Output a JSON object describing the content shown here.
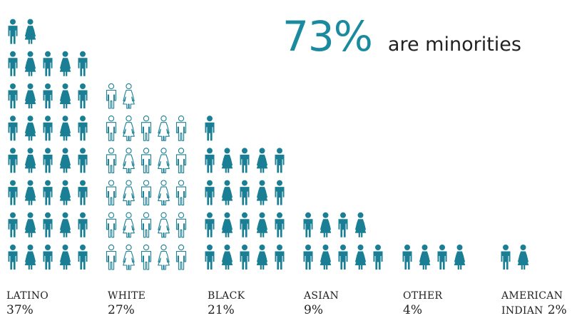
{
  "headline": {
    "value": "73%",
    "text": "are minorities"
  },
  "chart_data": {
    "type": "pictograph",
    "colors": {
      "filled": "#1a7f94",
      "outline": "#1a7f94"
    },
    "series": [
      {
        "label": "LATINO",
        "label_sub": "",
        "percent": "37%",
        "value": 37,
        "style": "filled"
      },
      {
        "label": "WHITE",
        "label_sub": "",
        "percent": "27%",
        "value": 27,
        "style": "outline"
      },
      {
        "label": "BLACK",
        "label_sub": "",
        "percent": "21%",
        "value": 21,
        "style": "filled"
      },
      {
        "label": "ASIAN",
        "label_sub": "",
        "percent": "9%",
        "value": 9,
        "style": "filled"
      },
      {
        "label": "OTHER",
        "label_sub": "",
        "percent": "4%",
        "value": 4,
        "style": "filled"
      },
      {
        "label": "AMERICAN",
        "label_sub": "INDIAN",
        "percent": "2%",
        "value": 2,
        "style": "filled"
      }
    ]
  }
}
